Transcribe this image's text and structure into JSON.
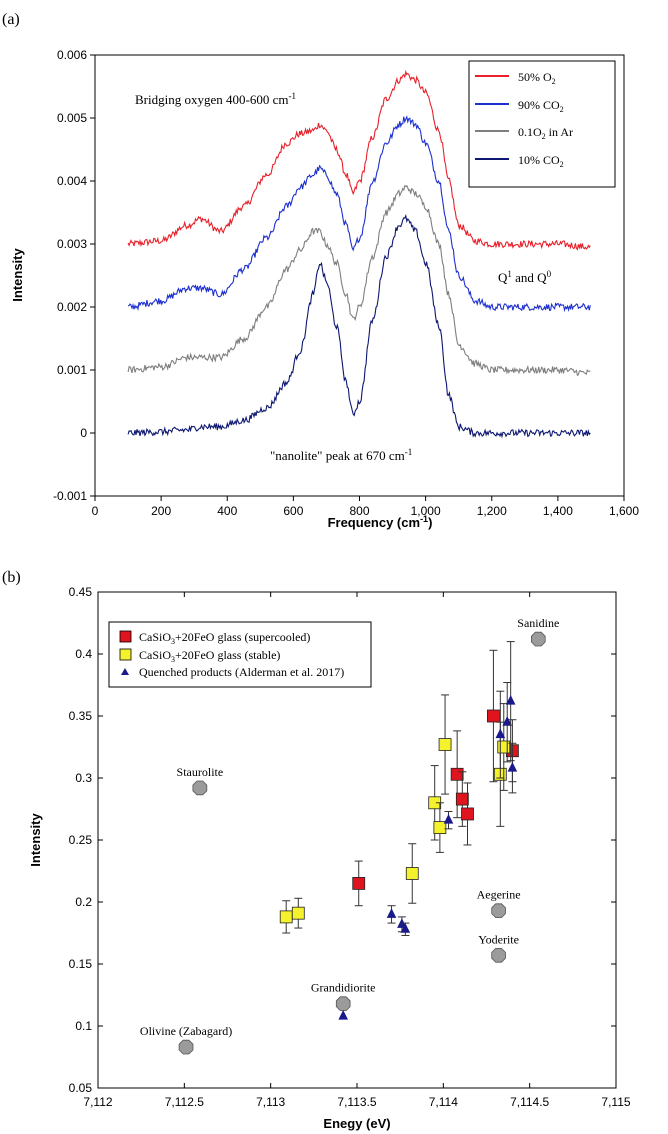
{
  "panel_a": {
    "label": "(a)",
    "annotations": {
      "bridging": "Bridging oxygen 400-600 cm",
      "bridging_sup": "-1",
      "q_a": "Q",
      "q_a_sup": "1",
      "q_mid": " and Q",
      "q_b_sup": "0",
      "nano": "\"nanolite\" peak at 670 cm",
      "nano_sup": "-1"
    }
  },
  "panel_b": {
    "label": "(b)"
  },
  "chart_data": [
    {
      "type": "line",
      "xlabel": "Frequency (cm-1)",
      "xlabel_base": "Frequency (cm",
      "xlabel_sup": "-1",
      "xlabel_end": ")",
      "ylabel": "Intensity",
      "xlim": [
        0,
        1600
      ],
      "ylim": [
        -0.001,
        0.006
      ],
      "xticks": [
        0,
        200,
        400,
        600,
        800,
        1000,
        1200,
        1400,
        1600
      ],
      "xtick_labels": [
        "0",
        "200",
        "400",
        "600",
        "800",
        "1,000",
        "1,200",
        "1,400",
        "1,600"
      ],
      "yticks": [
        -0.001,
        0,
        0.001,
        0.002,
        0.003,
        0.004,
        0.005,
        0.006
      ],
      "ytick_labels": [
        "-0.001",
        "0",
        "0.001",
        "0.002",
        "0.003",
        "0.004",
        "0.005",
        "0.006"
      ],
      "legend_position": "top-right",
      "x": [
        100,
        200,
        280,
        320,
        380,
        450,
        520,
        580,
        620,
        660,
        680,
        700,
        730,
        760,
        780,
        800,
        840,
        880,
        920,
        940,
        970,
        1000,
        1040,
        1070,
        1100,
        1150,
        1200,
        1300,
        1400,
        1500
      ],
      "series": [
        {
          "name": "50% O2",
          "legend_base": "50% O",
          "legend_sub": "2",
          "color": "#e8202a",
          "values": [
            0.003,
            0.00305,
            0.0033,
            0.0034,
            0.0032,
            0.0036,
            0.0041,
            0.0046,
            0.00475,
            0.0048,
            0.0049,
            0.0048,
            0.0045,
            0.0041,
            0.0038,
            0.004,
            0.0047,
            0.0053,
            0.0056,
            0.0057,
            0.0056,
            0.0054,
            0.0048,
            0.004,
            0.0033,
            0.00305,
            0.003,
            0.003,
            0.003,
            0.00295
          ]
        },
        {
          "name": "90% CO2",
          "legend_base": "90% CO",
          "legend_sub": "2",
          "color": "#1c2fd0",
          "values": [
            0.002,
            0.0021,
            0.0023,
            0.0023,
            0.0022,
            0.0026,
            0.0031,
            0.0036,
            0.0039,
            0.0041,
            0.0042,
            0.0041,
            0.0038,
            0.0033,
            0.0029,
            0.0031,
            0.004,
            0.0046,
            0.0049,
            0.005,
            0.0049,
            0.0046,
            0.004,
            0.0032,
            0.0025,
            0.0021,
            0.002,
            0.002,
            0.002,
            0.002
          ]
        },
        {
          "name": "0.1O2 in Ar",
          "legend_base": "0.1O",
          "legend_sub": "2",
          "legend_end": " in Ar",
          "color": "#7f7f7f",
          "values": [
            0.001,
            0.00105,
            0.0012,
            0.0012,
            0.0012,
            0.0015,
            0.002,
            0.0026,
            0.0029,
            0.0032,
            0.0032,
            0.003,
            0.0027,
            0.0022,
            0.0018,
            0.002,
            0.0028,
            0.0035,
            0.0038,
            0.0039,
            0.0038,
            0.0036,
            0.003,
            0.0022,
            0.0014,
            0.0011,
            0.001,
            0.001,
            0.001,
            0.00095
          ]
        },
        {
          "name": "10% CO2",
          "legend_base": "10% CO",
          "legend_sub": "2",
          "color": "#0d1670",
          "values": [
            0.0,
            2e-05,
            5e-05,
            0.0001,
            0.0001,
            0.0002,
            0.0004,
            0.0008,
            0.0013,
            0.0022,
            0.0027,
            0.0024,
            0.0017,
            0.0008,
            0.0003,
            0.0005,
            0.0018,
            0.0028,
            0.0033,
            0.0034,
            0.0032,
            0.0027,
            0.0017,
            0.0006,
            0.0001,
            0.0,
            0.0,
            0.0,
            0.0,
            0.0
          ]
        }
      ]
    },
    {
      "type": "scatter",
      "xlabel": "Enegy (eV)",
      "ylabel": "Intensity",
      "xlim": [
        7112,
        7115
      ],
      "ylim": [
        0.05,
        0.45
      ],
      "xticks": [
        7112,
        7112.5,
        7113,
        7113.5,
        7114,
        7114.5,
        7115
      ],
      "xtick_labels": [
        "7,112",
        "7,112.5",
        "7,113",
        "7,113.5",
        "7,114",
        "7,114.5",
        "7,115"
      ],
      "yticks": [
        0.05,
        0.1,
        0.15,
        0.2,
        0.25,
        0.3,
        0.35,
        0.4,
        0.45
      ],
      "ytick_labels": [
        "0.05",
        "0.1",
        "0.15",
        "0.2",
        "0.25",
        "0.3",
        "0.35",
        "0.4",
        "0.45"
      ],
      "legend_position": "top-left",
      "series": [
        {
          "name": "CaSiO3+20FeO glass (supercooled)",
          "legend_a": "CaSiO",
          "legend_sub": "3",
          "legend_b": "+20FeO glass (supercooled)",
          "marker": "square",
          "color": "#e0141e",
          "points": [
            {
              "x": 7113.51,
              "y": 0.215,
              "err": 0.018
            },
            {
              "x": 7114.08,
              "y": 0.303,
              "err": 0.035
            },
            {
              "x": 7114.11,
              "y": 0.283,
              "err": 0.022
            },
            {
              "x": 7114.14,
              "y": 0.271,
              "err": 0.025
            },
            {
              "x": 7114.29,
              "y": 0.35,
              "err": 0.053
            },
            {
              "x": 7114.4,
              "y": 0.322,
              "err": 0.025
            }
          ]
        },
        {
          "name": "CaSiO3+20FeO glass (stable)",
          "legend_a": "CaSiO",
          "legend_sub": "3",
          "legend_b": "+20FeO glass (stable)",
          "marker": "square",
          "color": "#f4f22c",
          "points": [
            {
              "x": 7113.09,
              "y": 0.188,
              "err": 0.013
            },
            {
              "x": 7113.16,
              "y": 0.191,
              "err": 0.012
            },
            {
              "x": 7113.82,
              "y": 0.223,
              "err": 0.024
            },
            {
              "x": 7113.95,
              "y": 0.28,
              "err": 0.03
            },
            {
              "x": 7113.98,
              "y": 0.26,
              "err": 0.02
            },
            {
              "x": 7114.01,
              "y": 0.327,
              "err": 0.04
            },
            {
              "x": 7114.33,
              "y": 0.303,
              "err": 0.042
            },
            {
              "x": 7114.35,
              "y": 0.325,
              "err": 0.035
            }
          ]
        },
        {
          "name": "Quenched products (Alderman et al. 2017)",
          "marker": "triangle",
          "color": "#1a1a8c",
          "points": [
            {
              "x": 7113.42,
              "y": 0.108,
              "err": 0
            },
            {
              "x": 7113.7,
              "y": 0.19,
              "err": 0.007
            },
            {
              "x": 7113.76,
              "y": 0.182,
              "err": 0.006
            },
            {
              "x": 7113.78,
              "y": 0.178,
              "err": 0.005
            },
            {
              "x": 7114.03,
              "y": 0.266,
              "err": 0.007
            },
            {
              "x": 7114.33,
              "y": 0.335,
              "err": 0.035
            },
            {
              "x": 7114.37,
              "y": 0.345,
              "err": 0.032
            },
            {
              "x": 7114.39,
              "y": 0.362,
              "err": 0.048
            },
            {
              "x": 7114.4,
              "y": 0.308,
              "err": 0.02
            }
          ]
        }
      ],
      "reference_minerals": [
        {
          "name": "Sanidine",
          "x": 7114.55,
          "y": 0.412
        },
        {
          "name": "Staurolite",
          "x": 7112.59,
          "y": 0.292
        },
        {
          "name": "Aegerine",
          "x": 7114.32,
          "y": 0.193
        },
        {
          "name": "Yoderite",
          "x": 7114.32,
          "y": 0.157
        },
        {
          "name": "Grandidiorite",
          "x": 7113.42,
          "y": 0.118
        },
        {
          "name": "Olivine (Zabagard)",
          "x": 7112.51,
          "y": 0.083
        }
      ],
      "mineral_color": "#9b9b9b"
    }
  ]
}
